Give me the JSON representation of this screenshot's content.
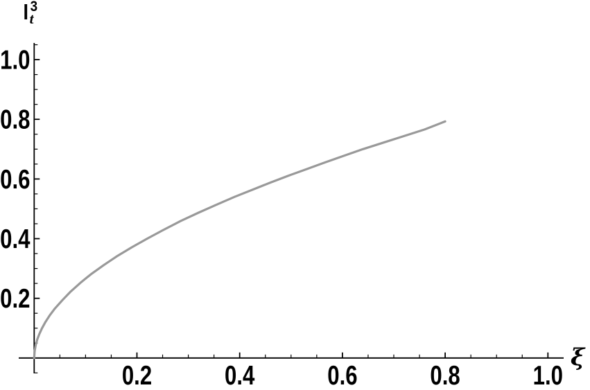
{
  "figure": {
    "background": "#ffffff",
    "y_axis_label": {
      "base": "l",
      "superscript": "3",
      "subscript": "t"
    },
    "x_axis_label": "ξ"
  },
  "chart_data": {
    "type": "line",
    "title": "",
    "xlabel": "ξ",
    "ylabel": "l_t^3",
    "xlim": [
      0,
      1.05
    ],
    "ylim": [
      0,
      1.05
    ],
    "grid": false,
    "legend": null,
    "axis_color": "#000000",
    "tick_label_color": "#000000",
    "x_ticks": [
      0.2,
      0.4,
      0.6,
      0.8,
      1.0
    ],
    "x_tick_labels": [
      "0.2",
      "0.4",
      "0.6",
      "0.8",
      "1.0"
    ],
    "y_ticks": [
      0.2,
      0.4,
      0.6,
      0.8,
      1.0
    ],
    "y_tick_labels": [
      "0.2",
      "0.4",
      "0.6",
      "0.8",
      "1.0"
    ],
    "minor_tick_step": 0.05,
    "series": [
      {
        "name": "l_t^3 vs xi",
        "color": "#999999",
        "stroke_width": 3.2,
        "x": [
          0,
          0.001,
          0.003,
          0.006,
          0.01,
          0.015,
          0.022,
          0.03,
          0.04,
          0.055,
          0.07,
          0.09,
          0.11,
          0.135,
          0.16,
          0.19,
          0.22,
          0.25,
          0.285,
          0.32,
          0.355,
          0.39,
          0.425,
          0.46,
          0.495,
          0.53,
          0.565,
          0.6,
          0.64,
          0.68,
          0.72,
          0.76,
          0.8
        ],
        "y": [
          0,
          0.024,
          0.043,
          0.062,
          0.08,
          0.099,
          0.121,
          0.142,
          0.165,
          0.194,
          0.221,
          0.252,
          0.28,
          0.311,
          0.34,
          0.371,
          0.4,
          0.428,
          0.459,
          0.487,
          0.514,
          0.54,
          0.564,
          0.588,
          0.611,
          0.633,
          0.655,
          0.676,
          0.7,
          0.722,
          0.744,
          0.766,
          0.793
        ]
      }
    ]
  }
}
